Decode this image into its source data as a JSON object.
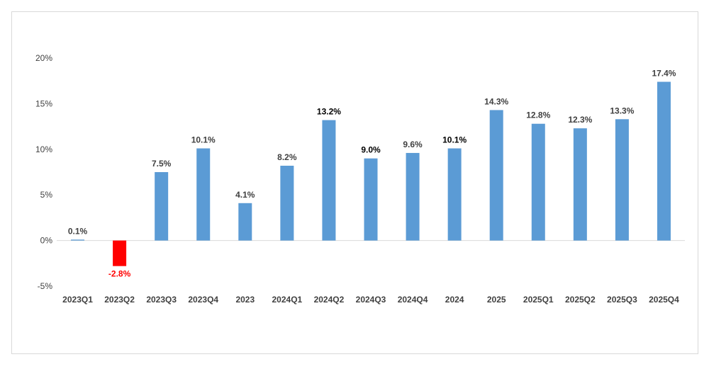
{
  "chart_data": {
    "type": "bar",
    "title": "",
    "xlabel": "",
    "ylabel": "",
    "ylim": [
      -5,
      20
    ],
    "yticks": [
      -5,
      0,
      5,
      10,
      15,
      20
    ],
    "ytick_labels": [
      "-5%",
      "0%",
      "5%",
      "10%",
      "15%",
      "20%"
    ],
    "categories": [
      "2023Q1",
      "2023Q2",
      "2023Q3",
      "2023Q4",
      "2023",
      "2024Q1",
      "2024Q2",
      "2024Q3",
      "2024Q4",
      "2024",
      "2025",
      "2025Q1",
      "2025Q2",
      "2025Q3",
      "2025Q4"
    ],
    "values": [
      0.1,
      -2.8,
      7.5,
      10.1,
      4.1,
      8.2,
      13.2,
      9.0,
      9.6,
      10.1,
      14.3,
      12.8,
      12.3,
      13.3,
      17.4
    ],
    "data_labels": [
      "0.1%",
      "-2.8%",
      "7.5%",
      "10.1%",
      "4.1%",
      "8.2%",
      "13.2%",
      "9.0%",
      "9.6%",
      "10.1%",
      "14.3%",
      "12.8%",
      "12.3%",
      "13.3%",
      "17.4%"
    ],
    "colors": {
      "positive": "#5b9bd5",
      "negative": "#ff0000",
      "label_default": "#404040",
      "label_negative": "#ff0000",
      "label_emphasis": "#000000",
      "axis": "#d9d9d9"
    },
    "emphasized_labels": [
      "2024Q2",
      "2024Q3",
      "2024"
    ],
    "grid": false,
    "legend": "none"
  }
}
